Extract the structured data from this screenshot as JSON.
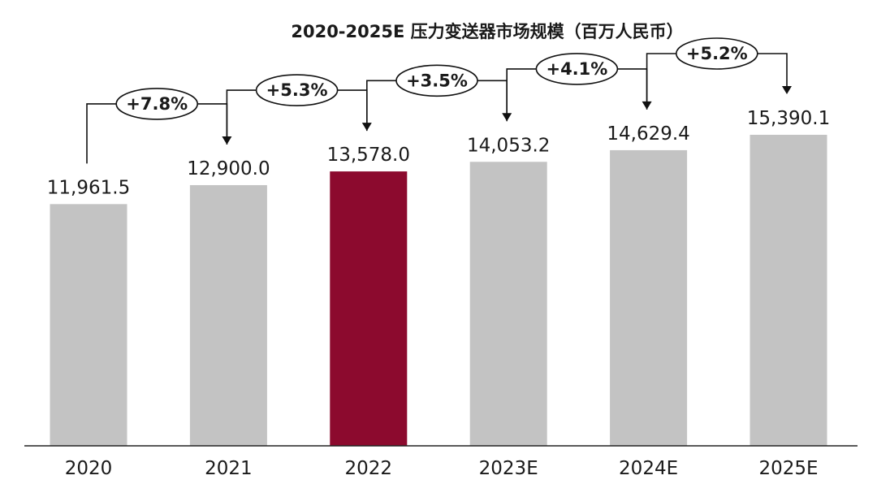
{
  "chart_data": {
    "type": "bar",
    "title": "2020-2025E 压力变送器市场规模（百万人民币）",
    "xlabel": "",
    "ylabel": "",
    "categories": [
      "2020",
      "2021",
      "2022",
      "2023E",
      "2024E",
      "2025E"
    ],
    "values": [
      11961.5,
      12900.0,
      13578.0,
      14053.2,
      14629.4,
      15390.1
    ],
    "value_labels": [
      "11,961.5",
      "12,900.0",
      "13,578.0",
      "14,053.2",
      "14,629.4",
      "15,390.1"
    ],
    "ylim": [
      0,
      15390.1
    ],
    "grid": false,
    "highlight_index": 2,
    "colors": {
      "bar": "#c3c3c3",
      "highlight": "#8c0a2e",
      "axis": "#222222",
      "connector": "#111111"
    },
    "growth_rates": [
      {
        "from": 0,
        "to": 1,
        "label": "+7.8%"
      },
      {
        "from": 1,
        "to": 2,
        "label": "+5.3%"
      },
      {
        "from": 2,
        "to": 3,
        "label": "+3.5%"
      },
      {
        "from": 3,
        "to": 4,
        "label": "+4.1%"
      },
      {
        "from": 4,
        "to": 5,
        "label": "+5.2%"
      }
    ]
  }
}
